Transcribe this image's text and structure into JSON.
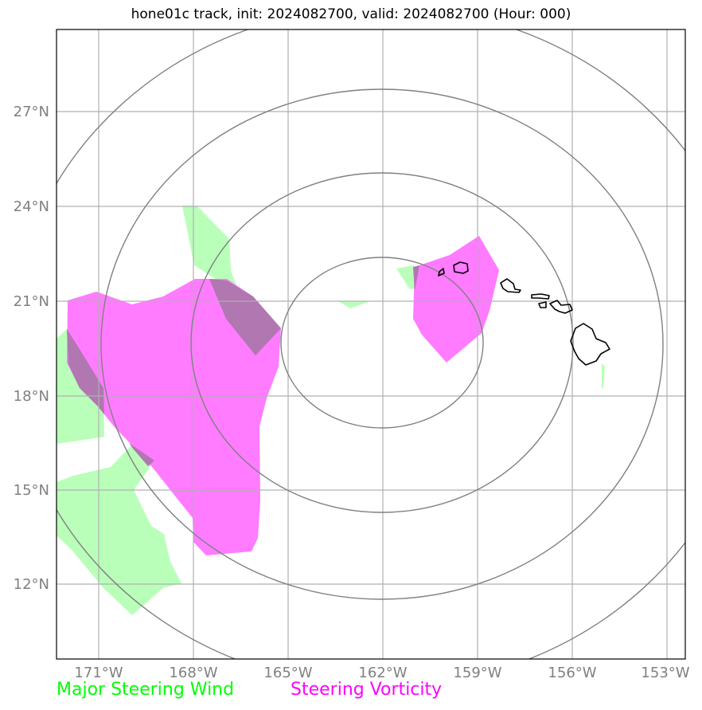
{
  "title": "hone01c track, init: 2024082700, valid: 2024082700 (Hour: 000)",
  "axes": {
    "lon_ticks": [
      "171°W",
      "168°W",
      "165°W",
      "162°W",
      "159°W",
      "156°W",
      "153°W"
    ],
    "lat_ticks": [
      "27°N",
      "24°N",
      "21°N",
      "18°N",
      "15°N",
      "12°N"
    ],
    "lon_range": [
      -172.4,
      -152.4
    ],
    "lat_range": [
      9.8,
      29.6
    ],
    "grid": true
  },
  "legend": {
    "wind_label": "Major Steering Wind",
    "vorticity_label": "Steering Vorticity",
    "wind_color": "#00ff00",
    "vorticity_color": "#ff00ff"
  },
  "colors": {
    "wind_fill": "#b9ffb9",
    "vorticity_fill": "#ff7bff",
    "overlap_fill": "#b077b0",
    "grid": "#b0b0b0",
    "rings": "#808080",
    "coast": "#000000"
  },
  "range_rings": {
    "center": {
      "lon": -162,
      "lat": 19.6
    },
    "count": 4
  },
  "features": [
    "hawaiian-islands-coastline",
    "major-steering-wind-areas",
    "steering-vorticity-areas"
  ]
}
